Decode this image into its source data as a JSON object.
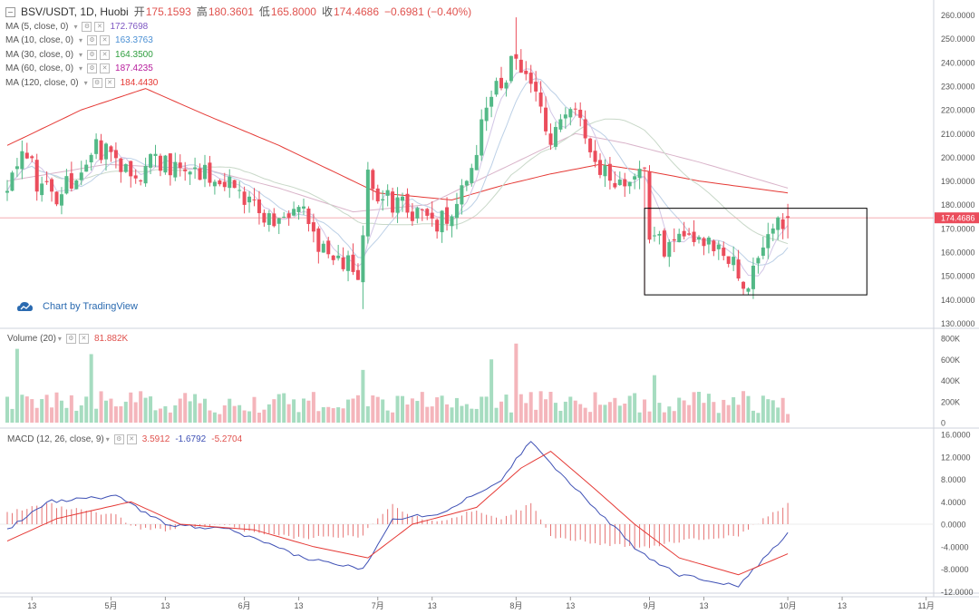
{
  "header": {
    "symbol": "BSV/USDT, 1D, Huobi",
    "open_label": "开",
    "open": "175.1593",
    "high_label": "高",
    "high": "180.3601",
    "low_label": "低",
    "low": "165.8000",
    "close_label": "收",
    "close": "174.4686",
    "change": "−0.6981 (−0.40%)"
  },
  "indicators": [
    {
      "label": "MA (5, close, 0)",
      "value": "172.7698",
      "color": "#7e57c2"
    },
    {
      "label": "MA (10, close, 0)",
      "value": "163.3763",
      "color": "#4a8fd4"
    },
    {
      "label": "MA (30, close, 0)",
      "value": "164.3500",
      "color": "#2e9e3e"
    },
    {
      "label": "MA (60, close, 0)",
      "value": "187.4235",
      "color": "#b71c9c"
    },
    {
      "label": "MA (120, close, 0)",
      "value": "184.4430",
      "color": "#e53935"
    }
  ],
  "watermark": "Chart by TradingView",
  "volume_legend": {
    "label": "Volume (20)",
    "value": "81.882K"
  },
  "macd_legend": {
    "label": "MACD (12, 26, close, 9)",
    "v1": "3.5912",
    "v2": "-1.6792",
    "v3": "-5.2704"
  },
  "last_price_tag": "174.4686",
  "colors": {
    "up": "#53b987",
    "down": "#eb4d5c",
    "grid": "#e0e3eb"
  },
  "chart_data": {
    "type": "candlestick",
    "x_tick_labels": [
      "13",
      "5月",
      "13",
      "6月",
      "13",
      "7月",
      "13",
      "8月",
      "13",
      "9月",
      "13",
      "10月",
      "13",
      "11月"
    ],
    "price_axis": {
      "min": 130,
      "max": 260,
      "ticks": [
        "130.0000",
        "140.0000",
        "150.0000",
        "160.0000",
        "170.0000",
        "180.0000",
        "190.0000",
        "200.0000",
        "210.0000",
        "220.0000",
        "230.0000",
        "240.0000",
        "250.0000",
        "260.0000"
      ]
    },
    "volume_axis": {
      "min": 0,
      "max": 800,
      "ticks": [
        "0",
        "200K",
        "400K",
        "600K",
        "800K"
      ]
    },
    "macd_axis": {
      "min": -12,
      "max": 16,
      "ticks": [
        "-12.0000",
        "-8.0000",
        "-4.0000",
        "0.0000",
        "4.0000",
        "8.0000",
        "12.0000",
        "16.0000"
      ]
    },
    "price_anchors": [
      [
        0,
        185
      ],
      [
        3,
        205
      ],
      [
        6,
        190
      ],
      [
        10,
        185
      ],
      [
        15,
        195
      ],
      [
        18,
        205
      ],
      [
        22,
        200
      ],
      [
        26,
        190
      ],
      [
        30,
        200
      ],
      [
        35,
        195
      ],
      [
        40,
        195
      ],
      [
        45,
        190
      ],
      [
        50,
        180
      ],
      [
        55,
        172
      ],
      [
        60,
        175
      ],
      [
        64,
        160
      ],
      [
        68,
        155
      ],
      [
        71,
        152
      ],
      [
        73,
        190
      ],
      [
        77,
        182
      ],
      [
        82,
        178
      ],
      [
        86,
        170
      ],
      [
        90,
        175
      ],
      [
        95,
        205
      ],
      [
        98,
        225
      ],
      [
        102,
        240
      ],
      [
        106,
        230
      ],
      [
        110,
        210
      ],
      [
        115,
        218
      ],
      [
        118,
        205
      ],
      [
        122,
        190
      ],
      [
        126,
        192
      ],
      [
        129,
        200
      ],
      [
        130,
        170
      ],
      [
        133,
        162
      ],
      [
        138,
        168
      ],
      [
        142,
        165
      ],
      [
        146,
        160
      ],
      [
        149,
        146
      ],
      [
        152,
        155
      ],
      [
        155,
        170
      ],
      [
        158,
        174.47
      ]
    ],
    "ma_anchors": {
      "ma120": [
        [
          0,
          205
        ],
        [
          15,
          220
        ],
        [
          28,
          229
        ],
        [
          40,
          218
        ],
        [
          55,
          205
        ],
        [
          65,
          195
        ],
        [
          75,
          185
        ],
        [
          90,
          182
        ],
        [
          100,
          188
        ],
        [
          110,
          193
        ],
        [
          120,
          197
        ],
        [
          130,
          194
        ],
        [
          140,
          190
        ],
        [
          158,
          185
        ]
      ],
      "ma60": [
        [
          0,
          190
        ],
        [
          20,
          197
        ],
        [
          40,
          195
        ],
        [
          55,
          187
        ],
        [
          70,
          177
        ],
        [
          85,
          180
        ],
        [
          100,
          195
        ],
        [
          115,
          210
        ],
        [
          125,
          206
        ],
        [
          140,
          198
        ],
        [
          158,
          187
        ]
      ]
    },
    "macd_anchors": {
      "dif": [
        [
          0,
          -1
        ],
        [
          8,
          4
        ],
        [
          22,
          5
        ],
        [
          32,
          0
        ],
        [
          45,
          -1
        ],
        [
          60,
          -6
        ],
        [
          72,
          -8
        ],
        [
          78,
          1
        ],
        [
          88,
          2
        ],
        [
          100,
          8
        ],
        [
          106,
          15
        ],
        [
          112,
          9
        ],
        [
          120,
          2
        ],
        [
          128,
          -5
        ],
        [
          136,
          -9
        ],
        [
          148,
          -11
        ],
        [
          158,
          -1.68
        ]
      ],
      "dea": [
        [
          0,
          -3
        ],
        [
          10,
          1
        ],
        [
          25,
          4
        ],
        [
          35,
          0
        ],
        [
          50,
          -1
        ],
        [
          62,
          -4
        ],
        [
          73,
          -6
        ],
        [
          82,
          0
        ],
        [
          95,
          3
        ],
        [
          104,
          10
        ],
        [
          110,
          13
        ],
        [
          118,
          7
        ],
        [
          127,
          0
        ],
        [
          136,
          -6
        ],
        [
          148,
          -9
        ],
        [
          158,
          -5.27
        ]
      ]
    },
    "volume_spikes": [
      [
        2,
        700
      ],
      [
        17,
        650
      ],
      [
        72,
        500
      ],
      [
        98,
        600
      ],
      [
        103,
        750
      ],
      [
        131,
        450
      ]
    ],
    "highlight_box": {
      "from_day": 129,
      "to_day": 174,
      "price_top": 178.5,
      "price_bottom": 142
    }
  }
}
